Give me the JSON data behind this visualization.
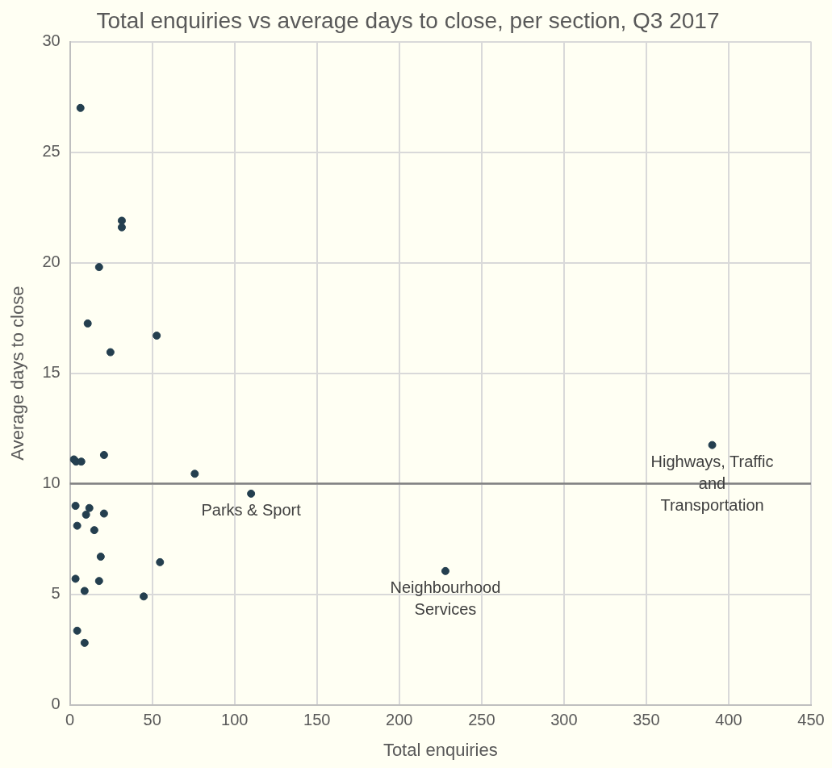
{
  "chart_data": {
    "type": "scatter",
    "title": "Total enquiries vs average days to close, per section, Q3 2017",
    "xlabel": "Total enquiries",
    "ylabel": "Average days to close",
    "x": [
      6.4,
      31.5,
      31.5,
      17.7,
      10.8,
      52.7,
      24.6,
      20.7,
      2.4,
      3.7,
      6.9,
      75.8,
      110,
      3.4,
      11.8,
      9.8,
      20.7,
      4.4,
      14.8,
      18.7,
      54.7,
      3.4,
      17.7,
      8.9,
      44.8,
      4.4,
      8.9,
      228,
      390
    ],
    "values": [
      27.0,
      21.9,
      21.6,
      19.8,
      17.25,
      16.7,
      15.95,
      11.3,
      11.1,
      11.0,
      11.0,
      10.45,
      9.55,
      9.0,
      8.9,
      8.6,
      8.65,
      8.1,
      7.9,
      6.7,
      6.45,
      5.7,
      5.6,
      5.15,
      4.9,
      3.35,
      2.8,
      6.05,
      11.75
    ],
    "color": "#243f4f",
    "marker": "circle",
    "xlim": [
      0,
      450
    ],
    "xticks": [
      0,
      50,
      100,
      150,
      200,
      250,
      300,
      350,
      400,
      450
    ],
    "ylim": [
      0,
      30
    ],
    "yticks": [
      0,
      5,
      10,
      15,
      20,
      25,
      30
    ],
    "grid": true,
    "ref_lines": [
      {
        "axis": "y",
        "value": 10,
        "color": "#808080"
      }
    ],
    "annotations": [
      {
        "text": "Parks & Sport",
        "x": 110,
        "y": 9.55
      },
      {
        "text": "Neighbourhood Services",
        "x": 228,
        "y": 6.05
      },
      {
        "text": "Highways, Traffic and Transportation",
        "x": 390,
        "y": 11.75
      }
    ]
  }
}
